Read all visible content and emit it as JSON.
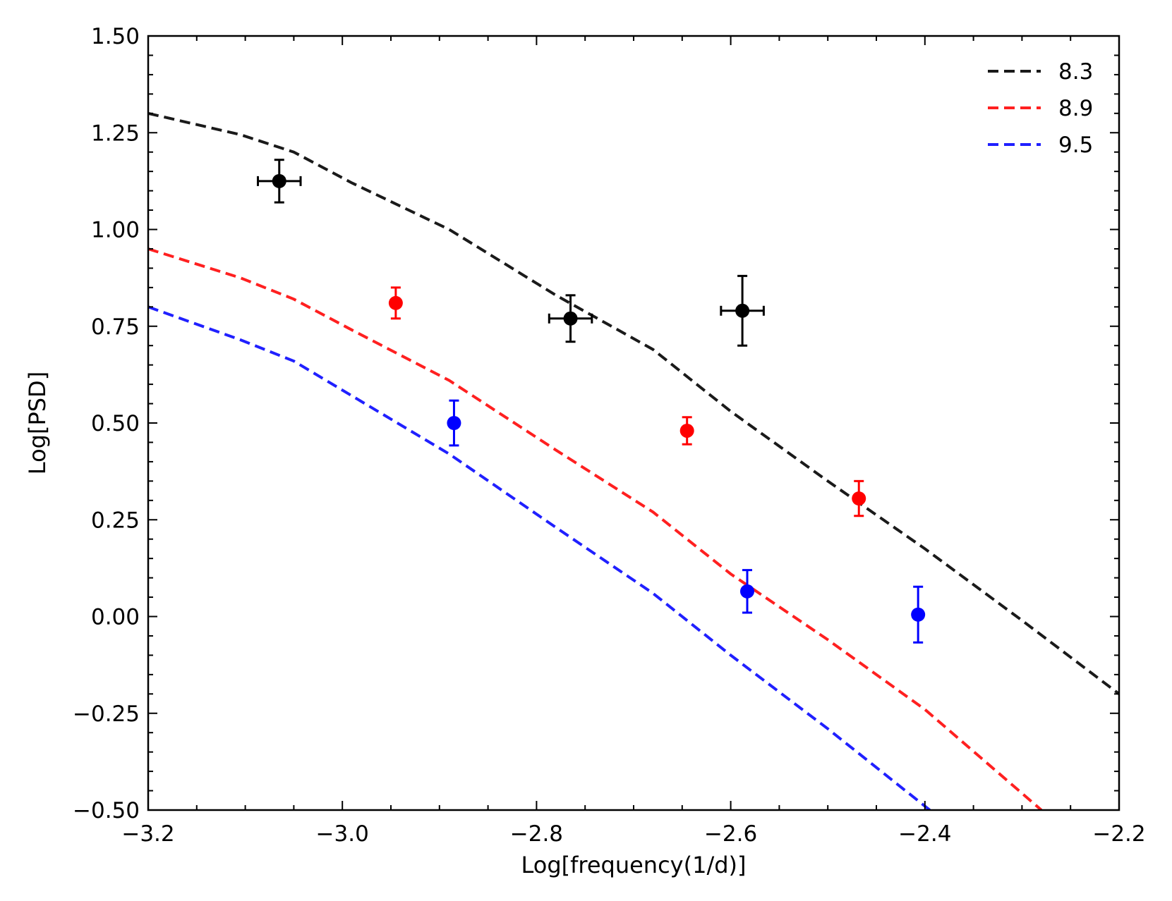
{
  "chart_data": {
    "type": "line",
    "title": "",
    "xlabel": "Log[frequency(1/d)]",
    "ylabel": "Log[PSD]",
    "xlim": [
      -3.2,
      -2.2
    ],
    "ylim": [
      -0.5,
      1.5
    ],
    "xticks": [
      -3.2,
      -3.0,
      -2.8,
      -2.6,
      -2.4,
      -2.2
    ],
    "xtick_labels": [
      "−3.2",
      "−3.0",
      "−2.8",
      "−2.6",
      "−2.4",
      "−2.2"
    ],
    "yticks": [
      -0.5,
      -0.25,
      0.0,
      0.25,
      0.5,
      0.75,
      1.0,
      1.25,
      1.5
    ],
    "ytick_labels": [
      "−0.50",
      "−0.25",
      "0.00",
      "0.25",
      "0.50",
      "0.75",
      "1.00",
      "1.25",
      "1.50"
    ],
    "grid": false,
    "legend_position": "top-right",
    "model_lines": [
      {
        "name": "8.3",
        "color": "#1a1a1a",
        "style": "dashed",
        "x": [
          -3.2,
          -3.105,
          -3.05,
          -2.99,
          -2.89,
          -2.78,
          -2.68,
          -2.6,
          -2.5,
          -2.4,
          -2.3,
          -2.2
        ],
        "y": [
          1.3,
          1.245,
          1.2,
          1.12,
          1.0,
          0.83,
          0.69,
          0.53,
          0.35,
          0.175,
          -0.01,
          -0.2
        ]
      },
      {
        "name": "8.9",
        "color": "#ff2020",
        "style": "dashed",
        "x": [
          -3.2,
          -3.105,
          -3.05,
          -2.99,
          -2.89,
          -2.78,
          -2.68,
          -2.6,
          -2.5,
          -2.4,
          -2.28
        ],
        "y": [
          0.95,
          0.875,
          0.82,
          0.74,
          0.61,
          0.43,
          0.27,
          0.11,
          -0.06,
          -0.24,
          -0.5
        ]
      },
      {
        "name": "9.5",
        "color": "#2020ff",
        "style": "dashed",
        "x": [
          -3.2,
          -3.105,
          -3.05,
          -2.99,
          -2.89,
          -2.78,
          -2.68,
          -2.6,
          -2.5,
          -2.395
        ],
        "y": [
          0.8,
          0.715,
          0.66,
          0.57,
          0.42,
          0.23,
          0.06,
          -0.1,
          -0.29,
          -0.5
        ]
      }
    ],
    "points": [
      {
        "series": "8.3",
        "color": "#000000",
        "x": -3.065,
        "y": 1.125,
        "yerr": 0.055,
        "xerr": 0.022
      },
      {
        "series": "8.3",
        "color": "#000000",
        "x": -2.765,
        "y": 0.77,
        "yerr": 0.06,
        "xerr": 0.022
      },
      {
        "series": "8.3",
        "color": "#000000",
        "x": -2.588,
        "y": 0.79,
        "yerr": 0.09,
        "xerr": 0.022
      },
      {
        "series": "8.9",
        "color": "#ff0000",
        "x": -2.945,
        "y": 0.81,
        "yerr": 0.04,
        "xerr": 0
      },
      {
        "series": "8.9",
        "color": "#ff0000",
        "x": -2.645,
        "y": 0.48,
        "yerr": 0.035,
        "xerr": 0
      },
      {
        "series": "8.9",
        "color": "#ff0000",
        "x": -2.468,
        "y": 0.305,
        "yerr": 0.045,
        "xerr": 0
      },
      {
        "series": "9.5",
        "color": "#0000ff",
        "x": -2.885,
        "y": 0.5,
        "yerr": 0.058,
        "xerr": 0
      },
      {
        "series": "9.5",
        "color": "#0000ff",
        "x": -2.583,
        "y": 0.065,
        "yerr": 0.055,
        "xerr": 0
      },
      {
        "series": "9.5",
        "color": "#0000ff",
        "x": -2.407,
        "y": 0.005,
        "yerr": 0.072,
        "xerr": 0
      }
    ]
  }
}
